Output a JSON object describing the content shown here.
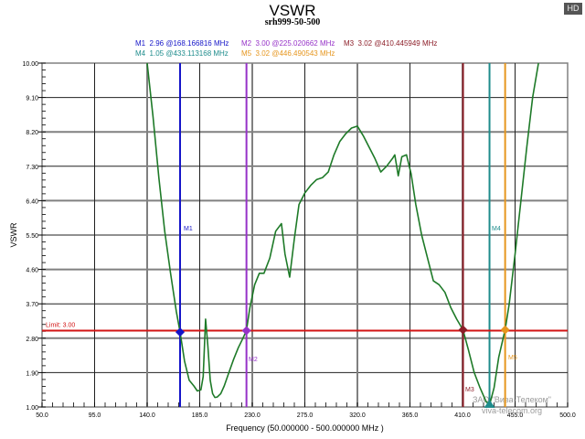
{
  "header": {
    "title": "VSWR",
    "subtitle": "srh999-50-500",
    "hd_badge": "HD"
  },
  "markers_legend": {
    "row1": [
      {
        "id": "M1",
        "text": "M1  2.96 @168.166816 MHz",
        "color": "#1414c8"
      },
      {
        "id": "M2",
        "text": "M2  3.00 @225.020662 MHz",
        "color": "#9632c8"
      },
      {
        "id": "M3",
        "text": "M3  3.02 @410.445949 MHz",
        "color": "#8c1e28"
      }
    ],
    "row2": [
      {
        "id": "M4",
        "text": "M4  1.05 @433.113168 MHz",
        "color": "#1e8c8c"
      },
      {
        "id": "M5",
        "text": "M5  3.02 @446.490543 MHz",
        "color": "#e6961e"
      }
    ]
  },
  "limit": {
    "label": "Limit: 3.00",
    "value": 3.0,
    "color": "#d21414"
  },
  "watermark": {
    "line1": "ЗАО \"Вива-Телеком\"",
    "line2": "viva-telecom.org"
  },
  "chart_data": {
    "type": "line",
    "title": "VSWR",
    "subtitle": "srh999-50-500",
    "xlabel": "Frequency (50.000000 - 500.000000 MHz )",
    "ylabel": "VSWR",
    "xlim": [
      50,
      500
    ],
    "ylim": [
      1.0,
      10.0
    ],
    "grid": true,
    "x_ticks": [
      "50.0",
      "95.0",
      "140.0",
      "185.0",
      "230.0",
      "275.0",
      "320.0",
      "365.0",
      "410.0",
      "455.0",
      "500.0"
    ],
    "y_ticks": [
      "10.00",
      "9.10",
      "8.20",
      "7.30",
      "6.40",
      "5.50",
      "4.60",
      "3.70",
      "2.80",
      "1.90",
      "1.00"
    ],
    "series": [
      {
        "name": "VSWR",
        "color": "#1e7a28",
        "x": [
          140,
          145,
          150,
          155,
          160,
          165,
          168.2,
          172,
          176,
          180,
          183,
          186,
          188,
          190,
          192,
          194,
          196,
          198,
          200,
          203,
          206,
          210,
          214,
          218,
          222,
          225,
          228,
          232,
          236,
          240,
          245,
          250,
          255,
          258,
          262,
          266,
          270,
          275,
          280,
          285,
          290,
          295,
          300,
          305,
          310,
          315,
          320,
          325,
          330,
          335,
          340,
          345,
          350,
          352,
          355,
          358,
          362,
          366,
          370,
          375,
          380,
          385,
          390,
          395,
          400,
          405,
          410.4,
          415,
          420,
          425,
          430,
          433.1,
          437,
          441,
          446.5,
          450,
          455,
          460,
          465,
          470,
          475
        ],
        "y": [
          10.0,
          8.6,
          7.0,
          5.6,
          4.5,
          3.5,
          2.96,
          2.2,
          1.7,
          1.55,
          1.42,
          1.45,
          1.8,
          3.3,
          2.6,
          1.7,
          1.35,
          1.25,
          1.26,
          1.35,
          1.55,
          1.9,
          2.25,
          2.55,
          2.8,
          3.0,
          3.6,
          4.2,
          4.5,
          4.5,
          4.9,
          5.6,
          5.8,
          5.0,
          4.4,
          5.4,
          6.3,
          6.6,
          6.8,
          6.95,
          7.0,
          7.15,
          7.6,
          7.95,
          8.15,
          8.3,
          8.35,
          8.1,
          7.8,
          7.5,
          7.15,
          7.3,
          7.5,
          7.6,
          7.05,
          7.55,
          7.6,
          7.1,
          6.3,
          5.5,
          4.9,
          4.3,
          4.2,
          4.0,
          3.6,
          3.3,
          3.02,
          2.5,
          1.9,
          1.5,
          1.15,
          1.05,
          1.5,
          2.3,
          3.02,
          3.7,
          5.0,
          6.4,
          7.8,
          9.1,
          10.0
        ]
      }
    ],
    "markers": [
      {
        "id": "M1",
        "vswr": 2.96,
        "freq_mhz": 168.166816,
        "color": "#1414c8"
      },
      {
        "id": "M2",
        "vswr": 3.0,
        "freq_mhz": 225.020662,
        "color": "#9632c8"
      },
      {
        "id": "M3",
        "vswr": 3.02,
        "freq_mhz": 410.445949,
        "color": "#8c1e28"
      },
      {
        "id": "M4",
        "vswr": 1.05,
        "freq_mhz": 433.113168,
        "color": "#1e8c8c"
      },
      {
        "id": "M5",
        "vswr": 3.02,
        "freq_mhz": 446.490543,
        "color": "#e6961e"
      }
    ],
    "limit_line": {
      "label": "Limit: 3.00",
      "value": 3.0
    }
  }
}
